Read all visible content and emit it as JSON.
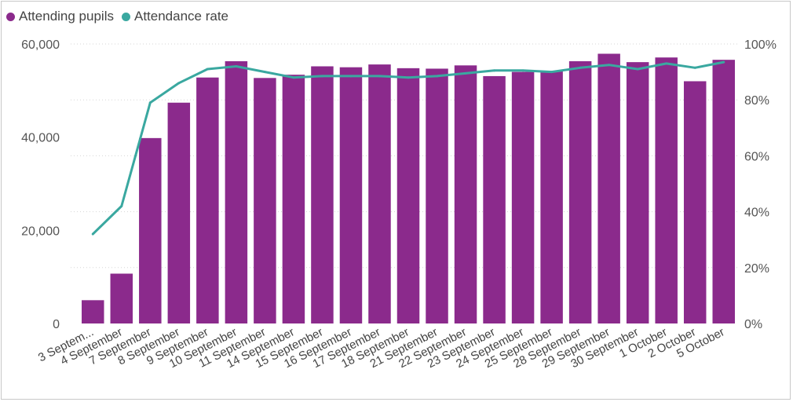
{
  "chart_data": {
    "type": "bar",
    "legend_position": "top-left",
    "categories": [
      "3 Septem...",
      "4 September",
      "7 September",
      "8 September",
      "9 September",
      "10 September",
      "11 September",
      "14 September",
      "15 September",
      "16 September",
      "17 September",
      "18 September",
      "21 September",
      "22 September",
      "23 September",
      "24 September",
      "25 September",
      "28 September",
      "29 September",
      "30 September",
      "1 October",
      "2 October",
      "5 October"
    ],
    "series": [
      {
        "name": "Attending pupils",
        "type": "bar",
        "axis": "left",
        "color": "#8B2A8C",
        "values": [
          5000,
          10700,
          39800,
          47400,
          52800,
          56300,
          52700,
          53400,
          55200,
          55000,
          55600,
          54800,
          54700,
          55400,
          53100,
          54000,
          54200,
          56300,
          57900,
          56100,
          57100,
          52000,
          56600
        ]
      },
      {
        "name": "Attendance rate",
        "type": "line",
        "axis": "right",
        "color": "#3AA8A0",
        "values": [
          32,
          42,
          79,
          86,
          91,
          92,
          90,
          88,
          88.5,
          88.5,
          88.5,
          88,
          88.5,
          89.5,
          90.5,
          90.5,
          90,
          91.5,
          92.5,
          91,
          93,
          91.5,
          93.5
        ]
      }
    ],
    "y_left": {
      "min": 0,
      "max": 60000,
      "ticks": [
        "0",
        "20,000",
        "40,000",
        "60,000"
      ],
      "tick_values": [
        0,
        20000,
        40000,
        60000
      ]
    },
    "y_right": {
      "min": 0,
      "max": 100,
      "ticks": [
        "0%",
        "20%",
        "40%",
        "60%",
        "80%",
        "100%"
      ],
      "tick_values": [
        0,
        20,
        40,
        60,
        80,
        100
      ]
    },
    "grid": true
  }
}
